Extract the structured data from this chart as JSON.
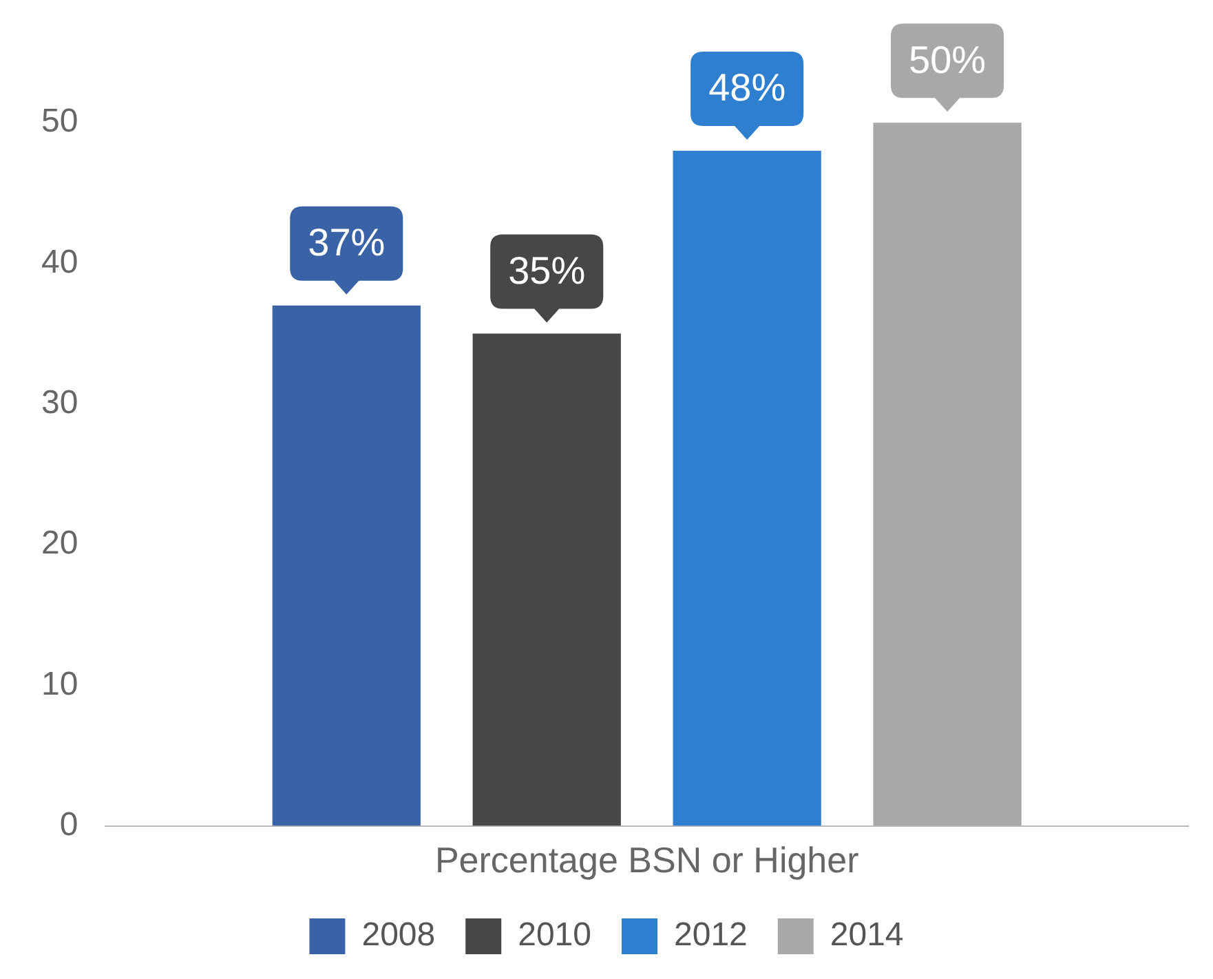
{
  "chart_data": {
    "type": "bar",
    "categories": [
      "Percentage BSN or Higher"
    ],
    "series": [
      {
        "name": "2008",
        "color": "#3a62a6",
        "values": [
          37
        ],
        "value_labels": [
          "37%"
        ]
      },
      {
        "name": "2010",
        "color": "#474747",
        "values": [
          35
        ],
        "value_labels": [
          "35%"
        ]
      },
      {
        "name": "2012",
        "color": "#2f7fd0",
        "values": [
          48
        ],
        "value_labels": [
          "48%"
        ]
      },
      {
        "name": "2014",
        "color": "#a8a8a8",
        "values": [
          50
        ],
        "value_labels": [
          "50%"
        ]
      }
    ],
    "ylim": [
      0,
      55
    ],
    "yticks": [
      0,
      10,
      20,
      30,
      40,
      50
    ],
    "grid": false,
    "legend": "bottom"
  }
}
